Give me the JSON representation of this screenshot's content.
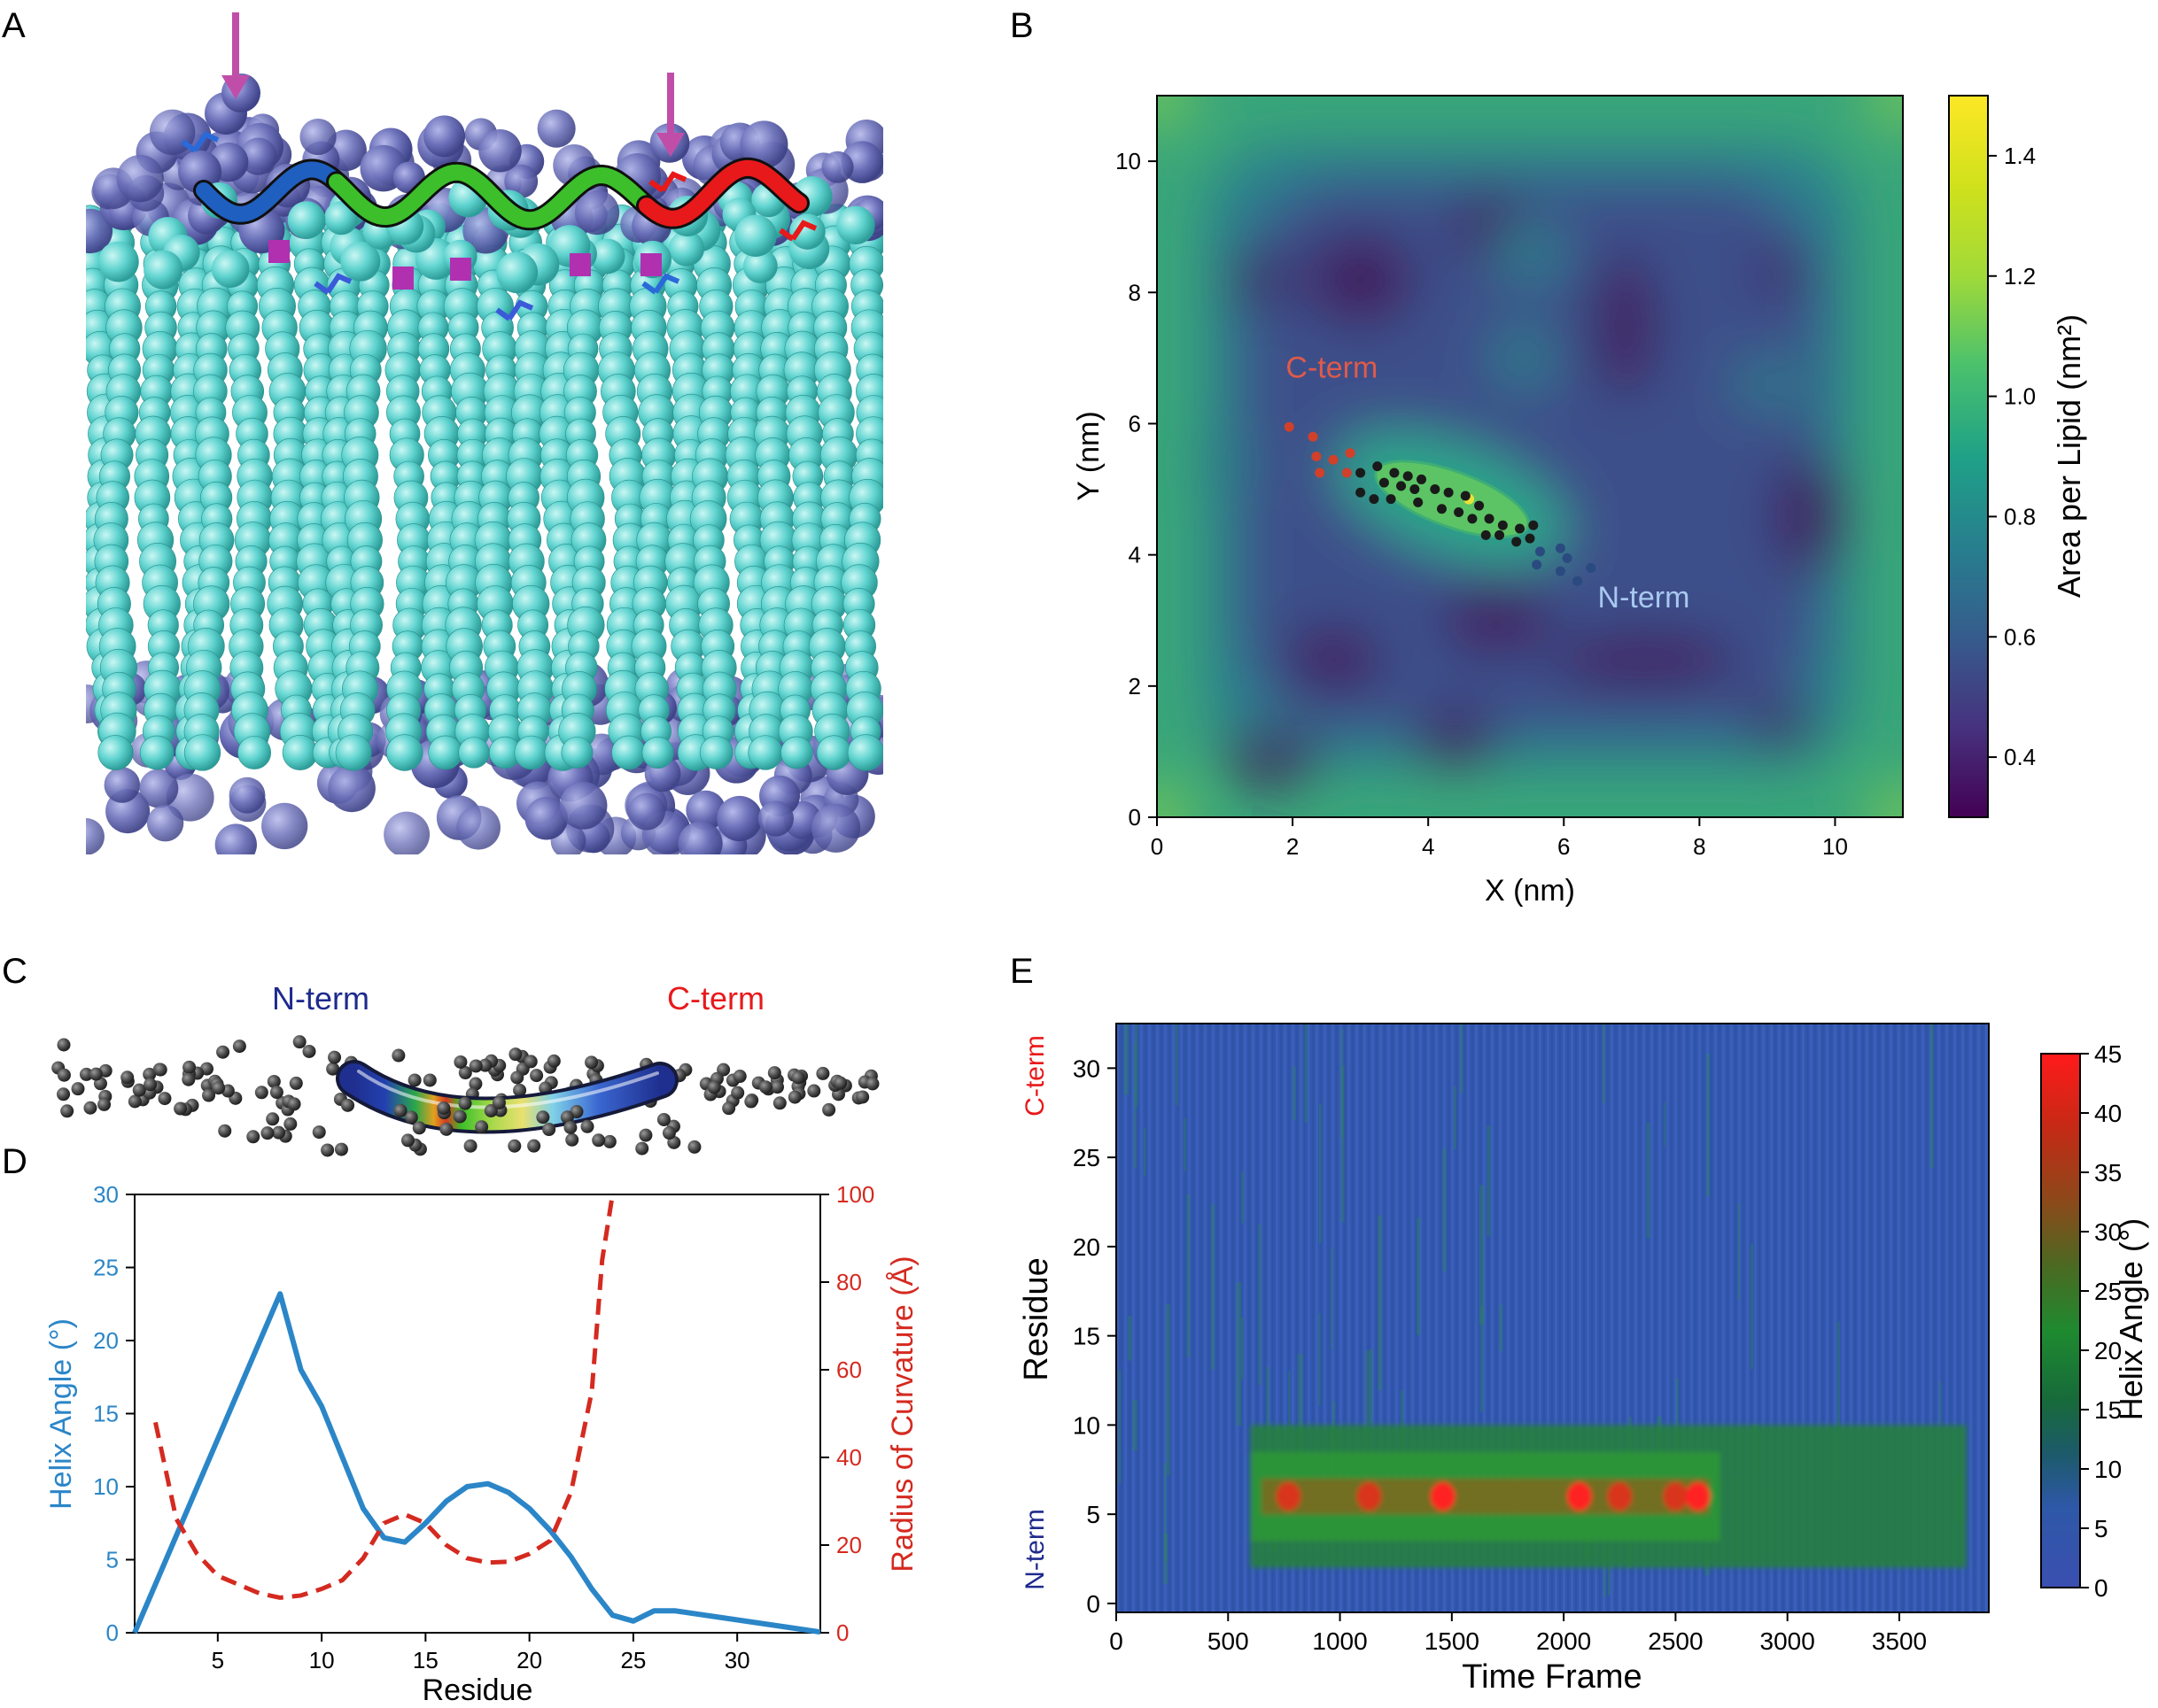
{
  "panels": {
    "a": {
      "letter": "A"
    },
    "b": {
      "letter": "B"
    },
    "c": {
      "letter": "C"
    },
    "d": {
      "letter": "D"
    },
    "e": {
      "letter": "E"
    }
  },
  "colors": {
    "helix_blue": "#1f5fbf",
    "helix_green": "#3cbf2a",
    "helix_red": "#e8191b",
    "lipid_cyan": "#5fd3cf",
    "headgroup_purple": "#6a6fb8",
    "arrow_magenta": "#c04ea8",
    "nterm_label_navy": "#1e2a8c",
    "cterm_label_red": "#e8191b",
    "line_blue": "#2b86c8",
    "line_red": "#d42a20"
  },
  "chart_data": [
    {
      "id": "panel_b",
      "type": "heatmap",
      "title": "",
      "xlabel": "X (nm)",
      "ylabel": "Y (nm)",
      "xlim": [
        0,
        11
      ],
      "ylim": [
        0,
        11
      ],
      "xticks": [
        0,
        2,
        4,
        6,
        8,
        10
      ],
      "yticks": [
        0,
        2,
        4,
        6,
        8,
        10
      ],
      "colorbar": {
        "label": "Area per Lipid (nm²)",
        "range": [
          0.3,
          1.5
        ],
        "ticks": [
          0.4,
          0.6,
          0.8,
          1.0,
          1.2,
          1.4
        ],
        "colormap": "viridis"
      },
      "annotations": [
        {
          "text": "C-term",
          "x": 1.9,
          "y": 6.7
        },
        {
          "text": "N-term",
          "x": 6.5,
          "y": 3.2
        }
      ],
      "residue_points": {
        "cterm_red": [
          [
            1.95,
            5.95
          ],
          [
            2.3,
            5.8
          ],
          [
            2.35,
            5.5
          ],
          [
            2.6,
            5.45
          ],
          [
            2.85,
            5.55
          ],
          [
            2.4,
            5.25
          ],
          [
            2.8,
            5.25
          ]
        ],
        "middle_black": [
          [
            3.0,
            5.25
          ],
          [
            3.25,
            5.35
          ],
          [
            3.5,
            5.25
          ],
          [
            3.7,
            5.2
          ],
          [
            3.9,
            5.15
          ],
          [
            3.35,
            5.1
          ],
          [
            3.6,
            5.05
          ],
          [
            3.8,
            5.0
          ],
          [
            4.1,
            5.0
          ],
          [
            4.3,
            4.95
          ],
          [
            4.55,
            4.9
          ],
          [
            3.0,
            4.95
          ],
          [
            3.2,
            4.85
          ],
          [
            3.45,
            4.85
          ],
          [
            3.85,
            4.8
          ],
          [
            4.2,
            4.7
          ],
          [
            4.45,
            4.65
          ],
          [
            4.75,
            4.75
          ],
          [
            4.9,
            4.55
          ],
          [
            5.1,
            4.45
          ],
          [
            5.35,
            4.4
          ],
          [
            5.55,
            4.45
          ],
          [
            4.65,
            4.55
          ],
          [
            4.85,
            4.3
          ],
          [
            5.05,
            4.3
          ],
          [
            5.3,
            4.2
          ],
          [
            5.5,
            4.25
          ]
        ],
        "nterm_blue": [
          [
            5.65,
            4.05
          ],
          [
            5.95,
            4.1
          ],
          [
            6.05,
            3.95
          ],
          [
            5.6,
            3.85
          ],
          [
            5.95,
            3.75
          ],
          [
            6.4,
            3.8
          ],
          [
            6.2,
            3.6
          ]
        ]
      },
      "high_region": {
        "center": [
          4.35,
          4.85
        ],
        "extent_x": 2.4,
        "extent_y": 0.6,
        "angle_deg": 20
      }
    },
    {
      "id": "panel_d",
      "type": "line",
      "title": "",
      "xlabel": "Residue",
      "xlim": [
        1,
        34
      ],
      "xticks": [
        5,
        10,
        15,
        20,
        25,
        30
      ],
      "y_left": {
        "label": "Helix Angle (°)",
        "range": [
          0,
          30
        ],
        "ticks": [
          0,
          5,
          10,
          15,
          20,
          25,
          30
        ]
      },
      "y_right": {
        "label": "Radius of Curvature (Å)",
        "range": [
          0,
          100
        ],
        "ticks": [
          0,
          20,
          40,
          60,
          80,
          100
        ]
      },
      "series": [
        {
          "axis": "left",
          "style": "solid",
          "x": [
            1,
            8,
            9,
            10,
            11,
            12,
            13,
            14,
            15,
            16,
            17,
            18,
            19,
            20,
            21,
            22,
            23,
            24,
            25,
            26,
            27,
            34
          ],
          "y": [
            0,
            23.2,
            18,
            15.5,
            12,
            8.5,
            6.5,
            6.2,
            7.5,
            9,
            10,
            10.2,
            9.6,
            8.5,
            7,
            5.2,
            3,
            1.2,
            0.8,
            1.5,
            1.5,
            0.05
          ]
        },
        {
          "axis": "right",
          "style": "dashed",
          "x": [
            2,
            3,
            4,
            5,
            6,
            7,
            8,
            9,
            10,
            11,
            12,
            13,
            14,
            15,
            16,
            17,
            18,
            19,
            20,
            21,
            22,
            23,
            23.5,
            24
          ],
          "y": [
            48,
            26,
            18,
            13,
            11,
            9,
            8,
            8.5,
            10,
            12,
            17,
            25,
            27,
            25,
            20,
            17,
            16,
            16.2,
            18,
            21,
            32,
            55,
            85,
            100
          ]
        }
      ]
    },
    {
      "id": "panel_e",
      "type": "heatmap",
      "title": "",
      "xlabel": "Time Frame",
      "ylabel": "Residue",
      "xlim": [
        0,
        3900
      ],
      "ylim": [
        -0.5,
        32.5
      ],
      "xticks": [
        0,
        500,
        1000,
        1500,
        2000,
        2500,
        3000,
        3500
      ],
      "yticks": [
        0,
        5,
        10,
        15,
        20,
        25,
        30
      ],
      "side_labels": {
        "top": "C-term",
        "bottom": "N-term"
      },
      "colorbar": {
        "label": "Helix Angle (°)",
        "range": [
          0,
          45
        ],
        "ticks": [
          0,
          5,
          10,
          15,
          20,
          25,
          30,
          35,
          40,
          45
        ]
      },
      "structure": {
        "background_angle": 6,
        "green_band": {
          "frames": [
            600,
            3800
          ],
          "residues": [
            2,
            10
          ],
          "angle": 18
        },
        "hot_band": {
          "frames": [
            650,
            2650
          ],
          "residues": [
            5,
            7
          ],
          "angle": 30
        },
        "hot_spots": [
          {
            "frame": 770,
            "angle": 40
          },
          {
            "frame": 1130,
            "angle": 42
          },
          {
            "frame": 1460,
            "angle": 44
          },
          {
            "frame": 2070,
            "angle": 45
          },
          {
            "frame": 2250,
            "angle": 40
          },
          {
            "frame": 2500,
            "angle": 42
          },
          {
            "frame": 2600,
            "angle": 44
          }
        ]
      }
    }
  ]
}
